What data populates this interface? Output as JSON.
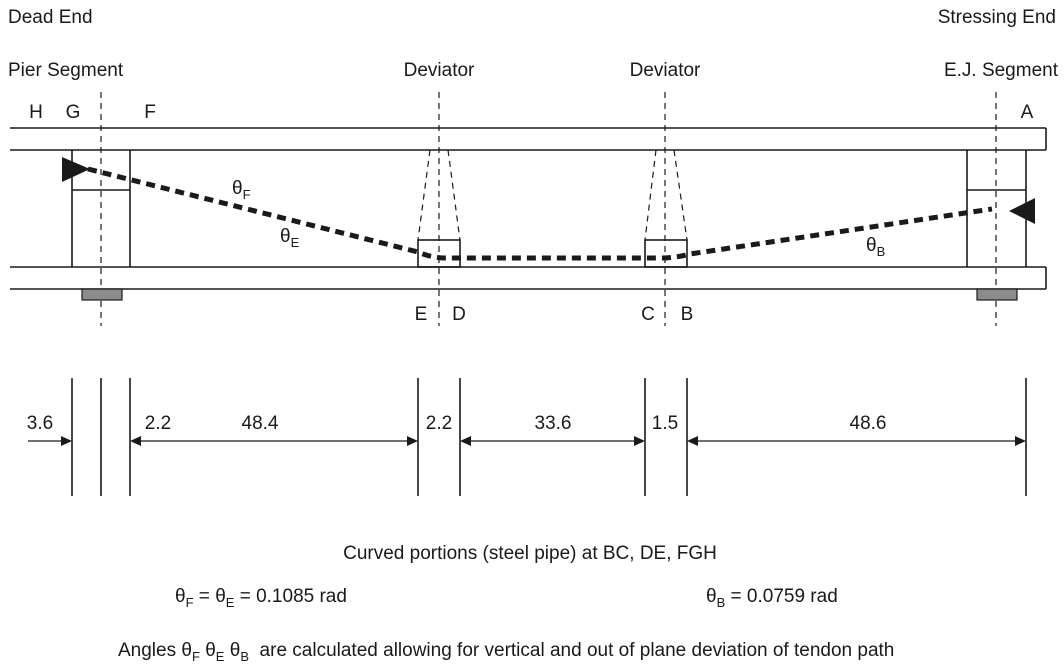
{
  "labels": {
    "dead_end": "Dead End",
    "stressing_end": "Stressing End",
    "pier_segment": "Pier Segment",
    "deviator_left": "Deviator",
    "deviator_right": "Deviator",
    "ej_segment": "E.J. Segment"
  },
  "points": {
    "H": "H",
    "G": "G",
    "F": "F",
    "A": "A",
    "E": "E",
    "D": "D",
    "C": "C",
    "B": "B"
  },
  "angles": {
    "theta": "θ",
    "F_sub": "F",
    "E_sub": "E",
    "B_sub": "B"
  },
  "dimensions": {
    "d1": "3.6",
    "d2": "2.2",
    "d3": "48.4",
    "d4": "2.2",
    "d5": "33.6",
    "d6": "1.5",
    "d7": "48.6"
  },
  "notes": {
    "curved": "Curved portions (steel pipe) at BC, DE, FGH",
    "eq_left_mid": " = ",
    "eq_left_val": " = 0.1085 rad",
    "eq_right_val": " = 0.0759 rad",
    "angles_prefix": "Angles",
    "angles_suffix": "are calculated allowing for vertical and out of plane deviation of tendon path"
  }
}
